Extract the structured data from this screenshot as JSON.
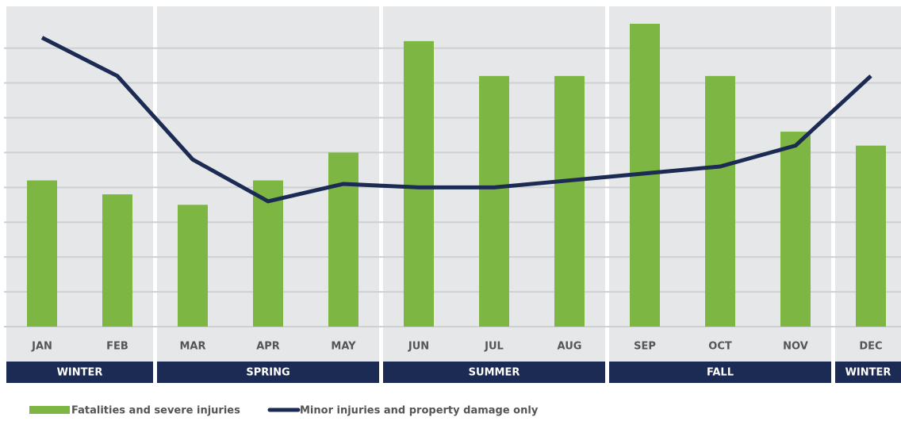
{
  "chart_data": {
    "type": "bar_line",
    "categories": [
      "JAN",
      "FEB",
      "MAR",
      "APR",
      "MAY",
      "JUN",
      "JUL",
      "AUG",
      "SEP",
      "OCT",
      "NOV",
      "DEC"
    ],
    "seasons": [
      "WINTER",
      "SPRING",
      "SUMMER",
      "FALL",
      "WINTER"
    ],
    "series": [
      {
        "name": "Fatalities and severe injuries",
        "type": "bar",
        "color": "#7db642",
        "values": [
          4.2,
          3.8,
          3.5,
          4.2,
          5.0,
          8.2,
          7.2,
          7.2,
          8.7,
          7.2,
          5.6,
          5.2
        ]
      },
      {
        "name": "Minor injuries and property damage only",
        "type": "line",
        "color": "#1b2b53",
        "values": [
          8.3,
          7.2,
          4.8,
          3.6,
          4.1,
          4.0,
          4.0,
          4.2,
          4.4,
          4.6,
          5.2,
          7.2
        ]
      }
    ],
    "ylim": [
      0,
      9.2
    ],
    "yticks": [
      0,
      1,
      2,
      3,
      4,
      5,
      6,
      7,
      8
    ],
    "grid": true
  }
}
